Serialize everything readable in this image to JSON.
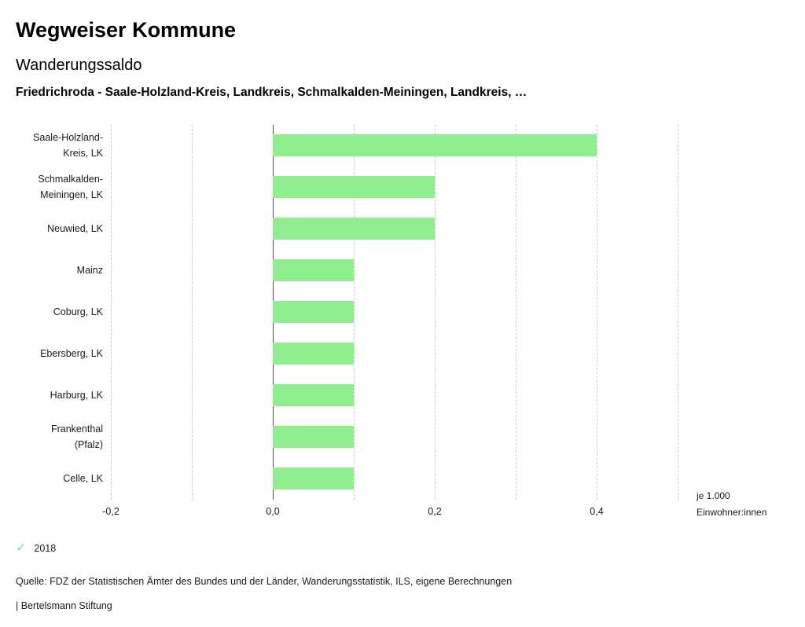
{
  "header": {
    "title": "Wegweiser Kommune",
    "subtitle": "Wanderungssaldo",
    "description": "Friedrichroda - Saale-Holzland-Kreis, Landkreis, Schmalkalden-Meiningen, Landkreis, …"
  },
  "chart_data": {
    "type": "bar",
    "orientation": "horizontal",
    "title": "Wanderungssaldo",
    "categories": [
      "Saale-Holzland-Kreis, LK",
      "Schmalkalden-Meiningen, LK",
      "Neuwied, LK",
      "Mainz",
      "Coburg, LK",
      "Ebersberg, LK",
      "Harburg, LK",
      "Frankenthal (Pfalz)",
      "Celle, LK"
    ],
    "values": [
      0.4,
      0.2,
      0.2,
      0.1,
      0.1,
      0.1,
      0.1,
      0.1,
      0.1
    ],
    "series_name": "2018",
    "bar_color": "#90ee90",
    "xlim": [
      -0.2,
      0.5
    ],
    "grid_step": 0.1,
    "grid": "dashed-vertical",
    "x_ticks": [
      -0.2,
      0,
      0.2,
      0.4
    ],
    "x_tick_labels": [
      "-0,2",
      "0,0",
      "0,2",
      "0,4"
    ],
    "xlabel": "je 1.000 Einwohner:innen",
    "ylabel": "",
    "unit_label": [
      "je 1.000",
      "Einwohner:innen"
    ],
    "legend_position": "bottom-left"
  },
  "legend": {
    "check_icon": "✓",
    "check_color": "#8fd98f",
    "year": "2018"
  },
  "footer": {
    "source": "Quelle: FDZ der Statistischen Ämter des Bundes und der Länder, Wanderungsstatistik, ILS, eigene Berechnungen",
    "branding": "| Bertelsmann Stiftung"
  }
}
